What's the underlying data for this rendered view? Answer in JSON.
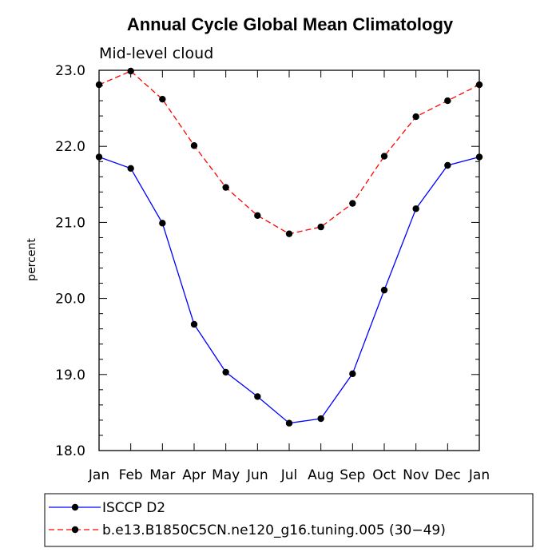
{
  "chart_data": {
    "type": "line",
    "title": "Annual Cycle Global Mean Climatology",
    "subtitle": "Mid-level cloud",
    "xlabel": "",
    "ylabel": "percent",
    "categories": [
      "Jan",
      "Feb",
      "Mar",
      "Apr",
      "May",
      "Jun",
      "Jul",
      "Aug",
      "Sep",
      "Oct",
      "Nov",
      "Dec",
      "Jan"
    ],
    "ylim": [
      18.0,
      23.0
    ],
    "yticks": [
      "18.0",
      "19.0",
      "20.0",
      "21.0",
      "22.0",
      "23.0"
    ],
    "legend_position": "bottom",
    "series": [
      {
        "name": "ISCCP D2",
        "color": "#0000ff",
        "dash": "solid",
        "values": [
          21.86,
          21.71,
          20.99,
          19.66,
          19.03,
          18.71,
          18.36,
          18.42,
          19.01,
          20.11,
          21.18,
          21.75,
          21.86
        ]
      },
      {
        "name": "b.e13.B1850C5CN.ne120_g16.tuning.005 (30−49)",
        "color": "#ff0000",
        "dash": "dashed",
        "values": [
          22.81,
          22.99,
          22.62,
          22.01,
          21.46,
          21.09,
          20.85,
          20.94,
          21.25,
          21.87,
          22.39,
          22.6,
          22.81
        ]
      }
    ]
  }
}
